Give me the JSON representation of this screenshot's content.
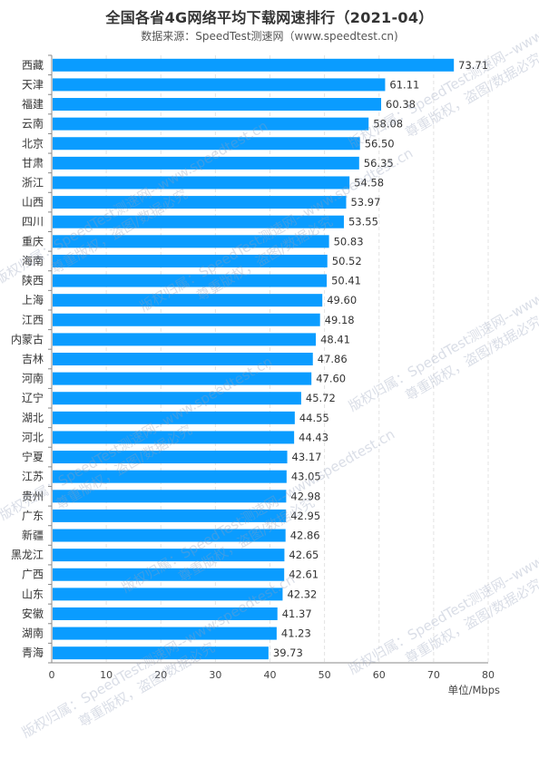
{
  "chart_data": {
    "type": "bar",
    "orientation": "horizontal",
    "title": "全国各省4G网络平均下载网速排行（2021-04）",
    "subtitle": "数据来源：SpeedTest测速网（www.speedtest.cn)",
    "xlabel": "单位/Mbps",
    "xlim": [
      0,
      80
    ],
    "xticks": [
      0,
      10,
      20,
      30,
      40,
      50,
      60,
      70,
      80
    ],
    "grid": true,
    "bar_color": "#0a9cff",
    "categories": [
      "西藏",
      "天津",
      "福建",
      "云南",
      "北京",
      "甘肃",
      "浙江",
      "山西",
      "四川",
      "重庆",
      "海南",
      "陕西",
      "上海",
      "江西",
      "内蒙古",
      "吉林",
      "河南",
      "辽宁",
      "湖北",
      "河北",
      "宁夏",
      "江苏",
      "贵州",
      "广东",
      "新疆",
      "黑龙江",
      "广西",
      "山东",
      "安徽",
      "湖南",
      "青海"
    ],
    "values": [
      73.71,
      61.11,
      60.38,
      58.08,
      56.5,
      56.35,
      54.58,
      53.97,
      53.55,
      50.83,
      50.52,
      50.41,
      49.6,
      49.18,
      48.41,
      47.86,
      47.6,
      45.72,
      44.55,
      44.43,
      43.17,
      43.05,
      42.98,
      42.95,
      42.86,
      42.65,
      42.61,
      42.32,
      41.37,
      41.23,
      39.73
    ],
    "value_labels": [
      "73.71",
      "61.11",
      "60.38",
      "58.08",
      "56.50",
      "56.35",
      "54.58",
      "53.97",
      "53.55",
      "50.83",
      "50.52",
      "50.41",
      "49.60",
      "49.18",
      "48.41",
      "47.86",
      "47.60",
      "45.72",
      "44.55",
      "44.43",
      "43.17",
      "43.05",
      "42.98",
      "42.95",
      "42.86",
      "42.65",
      "42.61",
      "42.32",
      "41.37",
      "41.23",
      "39.73"
    ]
  },
  "watermark": {
    "line1": "版权归属：SpeedTest测速网--www.speedtest.cn",
    "line2": "尊重版权，盗图/数据必究"
  }
}
